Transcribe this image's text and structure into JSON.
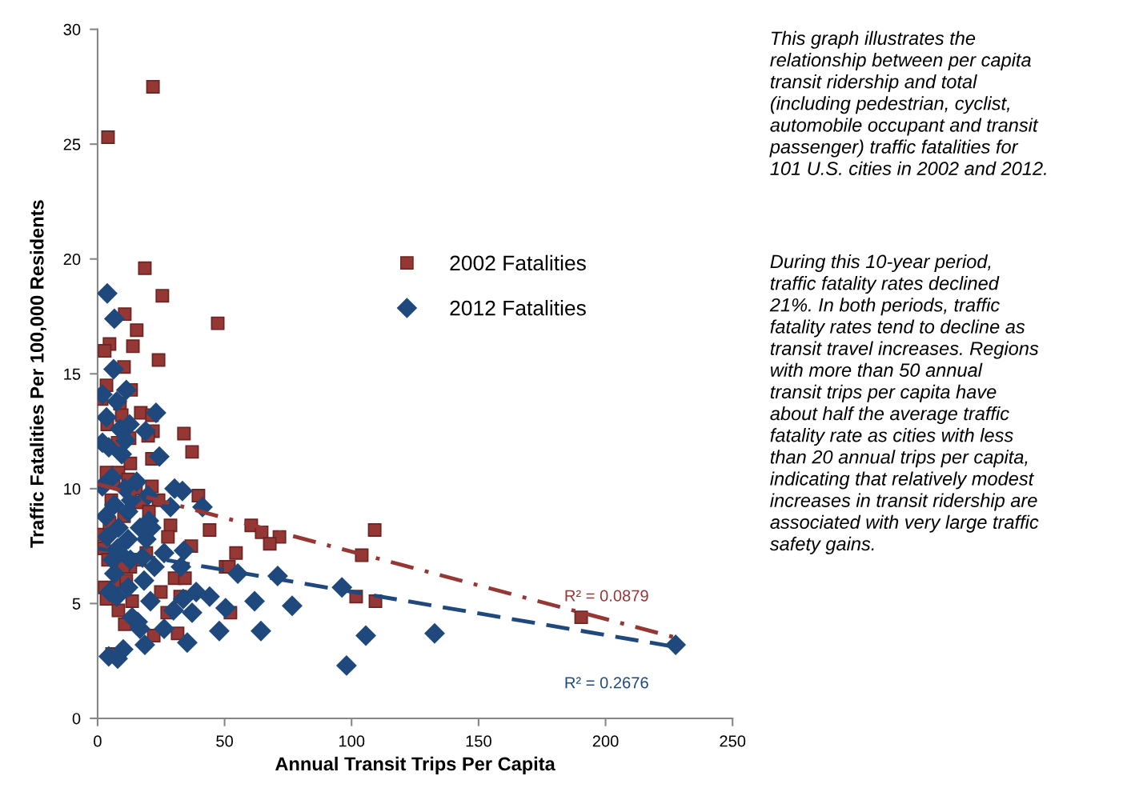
{
  "chart_data": [
    {
      "type": "scatter",
      "xlabel": "Annual Transit Trips Per Capita",
      "ylabel": "Traffic Fatalities Per 100,000 Residents",
      "xlim": [
        0,
        250
      ],
      "xticks": [
        0,
        50,
        100,
        150,
        200,
        250
      ],
      "ylim": [
        0,
        30
      ],
      "yticks": [
        0,
        5,
        10,
        15,
        20,
        25,
        30
      ],
      "grid": false,
      "legend": "top right",
      "series": [
        {
          "name": "2002 Fatalities",
          "type": "scatter",
          "marker": "square",
          "color": "#953735",
          "x": [
            21.8,
            4.1,
            18.6,
            25.5,
            10.7,
            47.3,
            15.4,
            4.7,
            13.9,
            2.8,
            24.0,
            10.4,
            13.2,
            3.5,
            1.6,
            8.8,
            17.0,
            9.5,
            21.4,
            3.8,
            21.8,
            12.6,
            34.0,
            19.9,
            7.9,
            37.2,
            21.4,
            12.9,
            3.5,
            8.2,
            12.0,
            21.4,
            5.4,
            39.7,
            17.0,
            10.4,
            28.7,
            44.1,
            60.5,
            64.6,
            71.6,
            109.1,
            67.8,
            1.6,
            27.7,
            36.9,
            2.5,
            54.5,
            19.2,
            104.0,
            16.7,
            50.4,
            51.7,
            12.9,
            30.3,
            34.4,
            7.9,
            24.9,
            32.5,
            101.8,
            109.4,
            3.5,
            13.6,
            11.3,
            8.2,
            52.3,
            190.4,
            10.7,
            31.5,
            22.1,
            5.7,
            27.4,
            15.1,
            6.3,
            24.0,
            20.2,
            10.1,
            4.1,
            4.7,
            2.8
          ],
          "values": [
            27.5,
            25.3,
            19.6,
            18.4,
            17.6,
            17.2,
            16.9,
            16.3,
            16.2,
            16.0,
            15.6,
            15.3,
            14.3,
            14.5,
            13.9,
            13.7,
            13.3,
            13.2,
            13.2,
            12.8,
            12.5,
            12.2,
            12.4,
            12.3,
            12.0,
            11.6,
            11.3,
            11.1,
            10.7,
            10.7,
            10.4,
            10.1,
            9.5,
            9.7,
            9.4,
            8.8,
            8.4,
            8.2,
            8.4,
            8.1,
            7.9,
            8.2,
            7.6,
            8.0,
            7.9,
            7.5,
            7.4,
            7.2,
            7.2,
            7.1,
            6.9,
            6.6,
            6.6,
            6.6,
            6.1,
            6.1,
            5.9,
            5.5,
            5.3,
            5.3,
            5.1,
            5.2,
            5.1,
            6.0,
            4.7,
            4.6,
            4.4,
            4.1,
            3.7,
            3.6,
            2.8,
            4.6,
            10.0,
            10.3,
            9.5,
            9.0,
            6.6,
            6.9,
            8.5,
            5.7
          ]
        },
        {
          "name": "2012 Fatalities",
          "type": "scatter",
          "marker": "diamond",
          "color": "#1f497d",
          "x": [
            3.8,
            6.6,
            6.3,
            11.3,
            1.9,
            7.6,
            23.0,
            3.5,
            12.6,
            8.8,
            18.9,
            1.9,
            11.0,
            4.4,
            9.5,
            24.3,
            5.7,
            15.4,
            1.9,
            10.7,
            30.3,
            33.4,
            19.9,
            6.6,
            41.3,
            28.7,
            12.0,
            20.2,
            8.2,
            16.7,
            3.8,
            12.0,
            19.2,
            7.9,
            34.0,
            26.2,
            17.7,
            6.0,
            12.9,
            22.4,
            32.8,
            6.6,
            55.2,
            70.9,
            18.3,
            12.0,
            5.4,
            38.8,
            96.2,
            33.7,
            44.1,
            20.8,
            61.8,
            7.6,
            76.6,
            50.4,
            29.9,
            37.2,
            13.6,
            15.8,
            16.7,
            26.2,
            64.3,
            47.9,
            105.6,
            132.7,
            18.6,
            35.3,
            10.1,
            4.4,
            7.9,
            98.0,
            227.6,
            3.2,
            8.8,
            4.7,
            13.2,
            21.1
          ],
          "values": [
            18.5,
            17.4,
            15.2,
            14.3,
            14.1,
            13.8,
            13.3,
            13.1,
            12.8,
            12.6,
            12.5,
            12.0,
            12.1,
            11.8,
            11.5,
            11.4,
            10.5,
            10.3,
            10.1,
            10.0,
            10.0,
            9.9,
            9.7,
            9.3,
            9.2,
            9.2,
            9.0,
            8.6,
            8.3,
            8.3,
            7.9,
            7.8,
            7.8,
            7.4,
            7.3,
            7.2,
            7.0,
            6.9,
            6.9,
            6.6,
            6.6,
            6.3,
            6.3,
            6.2,
            6.0,
            5.7,
            5.5,
            5.5,
            5.7,
            5.2,
            5.3,
            5.1,
            5.1,
            5.3,
            4.9,
            4.8,
            4.7,
            4.6,
            4.4,
            4.2,
            3.9,
            3.9,
            3.8,
            3.8,
            3.6,
            3.7,
            3.2,
            3.3,
            3.0,
            2.7,
            2.6,
            2.3,
            3.2,
            8.8,
            7.2,
            5.5,
            9.5,
            8.3
          ]
        },
        {
          "name": "R² = 0.0879",
          "type": "line",
          "line_style": "dashdot",
          "color": "#953735",
          "x": [
            0,
            228
          ],
          "values": [
            10.2,
            3.5
          ]
        },
        {
          "name": "R² = 0.2676",
          "type": "line",
          "line_style": "dashed",
          "color": "#1f497d",
          "x": [
            0,
            228
          ],
          "values": [
            7.4,
            3.1
          ]
        }
      ]
    },
    {
      "type": "other",
      "annotations": [
        "This graph illustrates the\nrelationship between per capita\ntransit ridership and total\n(including pedestrian, cyclist,\nautomobile occupant and transit\npassenger) traffic fatalities for\n101 U.S. cities in 2002 and 2012.",
        "During this 10-year period,\ntraffic fatality rates declined\n21%. In both periods, traffic\nfatality rates tend to decline as\ntransit travel increases. Regions\nwith more than 50 annual\ntransit trips per capita have\nabout half the average traffic\nfatality rate as cities with less\nthan 20 annual trips per capita,\nindicating that relatively modest\nincreases in transit ridership are\nassociated with very large traffic\nsafety gains."
      ]
    }
  ]
}
